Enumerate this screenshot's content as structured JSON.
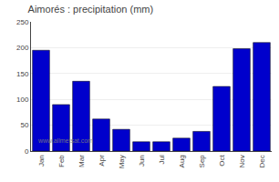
{
  "chart_data": {
    "type": "bar",
    "title": "Aimorés : precipitation (mm)",
    "categories": [
      "Jan",
      "Feb",
      "Mar",
      "Apr",
      "May",
      "Jun",
      "Jul",
      "Aug",
      "Sep",
      "Oct",
      "Nov",
      "Dec"
    ],
    "values": [
      195,
      90,
      135,
      62,
      42,
      18,
      18,
      25,
      38,
      125,
      198,
      210
    ],
    "color": "#0000cc",
    "ylim": [
      0,
      250
    ],
    "yticks": [
      0,
      50,
      100,
      150,
      200,
      250
    ],
    "grid": true,
    "annotations": [
      "www.allmetsat.com"
    ]
  }
}
